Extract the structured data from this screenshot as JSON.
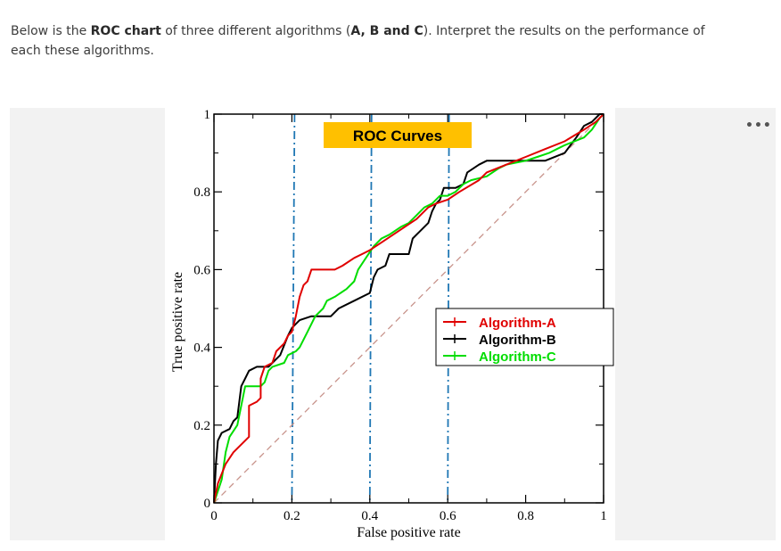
{
  "question": {
    "t1": "Below is the ",
    "b1": "ROC chart",
    "t2": " of three different algorithms (",
    "b2": "A, B and C",
    "t3": "). Interpret the results on the performance of each these algorithms."
  },
  "more_label": "•••",
  "chart_data": {
    "type": "line",
    "title": "ROC Curves",
    "xlabel": "False positive rate",
    "ylabel": "True positive rate",
    "xlim": [
      0,
      1
    ],
    "ylim": [
      0,
      1
    ],
    "xticks": [
      {
        "v": 0,
        "label": "0"
      },
      {
        "v": 0.2,
        "label": "0.2"
      },
      {
        "v": 0.4,
        "label": "0.4"
      },
      {
        "v": 0.6,
        "label": "0.6"
      },
      {
        "v": 0.8,
        "label": "0.8"
      },
      {
        "v": 1,
        "label": "1"
      }
    ],
    "yticks": [
      {
        "v": 0,
        "label": "0"
      },
      {
        "v": 0.2,
        "label": "0.2"
      },
      {
        "v": 0.4,
        "label": "0.4"
      },
      {
        "v": 0.6,
        "label": "0.6"
      },
      {
        "v": 0.8,
        "label": "0.8"
      },
      {
        "v": 1,
        "label": "1"
      }
    ],
    "grid": false,
    "legend_position": "center-right",
    "title_box_color": "#ffc000",
    "reference_lines": {
      "vertical_x": [
        0.2,
        0.4,
        0.6
      ],
      "vertical_color": "#1f77b4",
      "diagonal_color": "#c8948c"
    },
    "series": [
      {
        "name": "Algorithm-A",
        "color": "#e00000",
        "points": [
          [
            0,
            0
          ],
          [
            0.01,
            0.05
          ],
          [
            0.03,
            0.1
          ],
          [
            0.05,
            0.13
          ],
          [
            0.07,
            0.15
          ],
          [
            0.09,
            0.17
          ],
          [
            0.09,
            0.25
          ],
          [
            0.11,
            0.26
          ],
          [
            0.12,
            0.27
          ],
          [
            0.12,
            0.32
          ],
          [
            0.13,
            0.35
          ],
          [
            0.15,
            0.36
          ],
          [
            0.16,
            0.39
          ],
          [
            0.18,
            0.41
          ],
          [
            0.19,
            0.43
          ],
          [
            0.2,
            0.44
          ],
          [
            0.21,
            0.48
          ],
          [
            0.22,
            0.53
          ],
          [
            0.23,
            0.56
          ],
          [
            0.24,
            0.57
          ],
          [
            0.25,
            0.6
          ],
          [
            0.27,
            0.6
          ],
          [
            0.31,
            0.6
          ],
          [
            0.33,
            0.61
          ],
          [
            0.36,
            0.63
          ],
          [
            0.38,
            0.64
          ],
          [
            0.4,
            0.65
          ],
          [
            0.43,
            0.67
          ],
          [
            0.46,
            0.69
          ],
          [
            0.49,
            0.71
          ],
          [
            0.52,
            0.73
          ],
          [
            0.55,
            0.76
          ],
          [
            0.57,
            0.77
          ],
          [
            0.6,
            0.78
          ],
          [
            0.63,
            0.8
          ],
          [
            0.68,
            0.83
          ],
          [
            0.7,
            0.85
          ],
          [
            0.75,
            0.87
          ],
          [
            0.8,
            0.89
          ],
          [
            0.85,
            0.91
          ],
          [
            0.9,
            0.93
          ],
          [
            0.95,
            0.96
          ],
          [
            0.98,
            0.98
          ],
          [
            1,
            1
          ]
        ]
      },
      {
        "name": "Algorithm-B",
        "color": "#000000",
        "points": [
          [
            0,
            0
          ],
          [
            0.005,
            0.1
          ],
          [
            0.01,
            0.16
          ],
          [
            0.02,
            0.18
          ],
          [
            0.04,
            0.19
          ],
          [
            0.05,
            0.21
          ],
          [
            0.06,
            0.22
          ],
          [
            0.07,
            0.3
          ],
          [
            0.08,
            0.32
          ],
          [
            0.09,
            0.34
          ],
          [
            0.11,
            0.35
          ],
          [
            0.14,
            0.35
          ],
          [
            0.15,
            0.36
          ],
          [
            0.17,
            0.38
          ],
          [
            0.19,
            0.43
          ],
          [
            0.2,
            0.45
          ],
          [
            0.22,
            0.47
          ],
          [
            0.25,
            0.48
          ],
          [
            0.3,
            0.48
          ],
          [
            0.32,
            0.5
          ],
          [
            0.36,
            0.52
          ],
          [
            0.4,
            0.54
          ],
          [
            0.41,
            0.58
          ],
          [
            0.42,
            0.6
          ],
          [
            0.44,
            0.61
          ],
          [
            0.45,
            0.64
          ],
          [
            0.5,
            0.64
          ],
          [
            0.51,
            0.68
          ],
          [
            0.53,
            0.7
          ],
          [
            0.55,
            0.72
          ],
          [
            0.56,
            0.75
          ],
          [
            0.57,
            0.77
          ],
          [
            0.58,
            0.78
          ],
          [
            0.59,
            0.81
          ],
          [
            0.62,
            0.81
          ],
          [
            0.64,
            0.82
          ],
          [
            0.65,
            0.85
          ],
          [
            0.68,
            0.87
          ],
          [
            0.7,
            0.88
          ],
          [
            0.75,
            0.88
          ],
          [
            0.85,
            0.88
          ],
          [
            0.9,
            0.9
          ],
          [
            0.93,
            0.94
          ],
          [
            0.95,
            0.97
          ],
          [
            0.97,
            0.98
          ],
          [
            0.99,
            1
          ],
          [
            1,
            1
          ]
        ]
      },
      {
        "name": "Algorithm-C",
        "color": "#00dd00",
        "points": [
          [
            0,
            0
          ],
          [
            0.02,
            0.06
          ],
          [
            0.03,
            0.13
          ],
          [
            0.04,
            0.17
          ],
          [
            0.06,
            0.2
          ],
          [
            0.07,
            0.25
          ],
          [
            0.08,
            0.3
          ],
          [
            0.1,
            0.3
          ],
          [
            0.12,
            0.3
          ],
          [
            0.13,
            0.31
          ],
          [
            0.14,
            0.34
          ],
          [
            0.15,
            0.35
          ],
          [
            0.18,
            0.36
          ],
          [
            0.19,
            0.38
          ],
          [
            0.21,
            0.39
          ],
          [
            0.22,
            0.4
          ],
          [
            0.24,
            0.44
          ],
          [
            0.26,
            0.48
          ],
          [
            0.28,
            0.5
          ],
          [
            0.29,
            0.52
          ],
          [
            0.31,
            0.53
          ],
          [
            0.34,
            0.55
          ],
          [
            0.36,
            0.57
          ],
          [
            0.37,
            0.6
          ],
          [
            0.39,
            0.63
          ],
          [
            0.41,
            0.66
          ],
          [
            0.43,
            0.68
          ],
          [
            0.45,
            0.69
          ],
          [
            0.48,
            0.71
          ],
          [
            0.5,
            0.72
          ],
          [
            0.52,
            0.74
          ],
          [
            0.54,
            0.76
          ],
          [
            0.56,
            0.77
          ],
          [
            0.58,
            0.79
          ],
          [
            0.6,
            0.79
          ],
          [
            0.62,
            0.8
          ],
          [
            0.64,
            0.82
          ],
          [
            0.66,
            0.83
          ],
          [
            0.7,
            0.84
          ],
          [
            0.73,
            0.86
          ],
          [
            0.75,
            0.87
          ],
          [
            0.8,
            0.88
          ],
          [
            0.83,
            0.89
          ],
          [
            0.86,
            0.9
          ],
          [
            0.88,
            0.91
          ],
          [
            0.9,
            0.92
          ],
          [
            0.95,
            0.94
          ],
          [
            0.97,
            0.96
          ],
          [
            0.99,
            0.99
          ],
          [
            1,
            1
          ]
        ]
      }
    ]
  }
}
